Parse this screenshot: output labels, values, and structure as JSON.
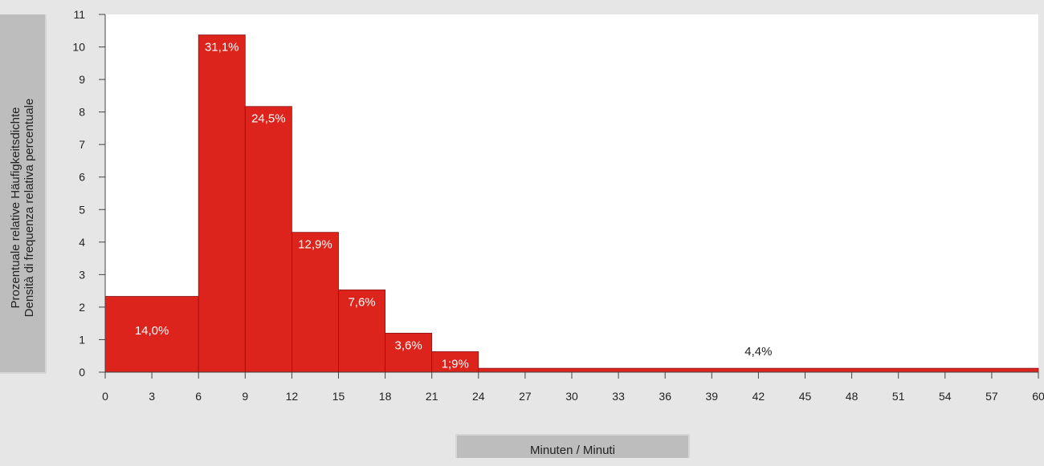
{
  "chart_data": {
    "type": "histogram",
    "ylabel_lines": [
      "Prozentuale relative Häufigkeitsdichte",
      "Densità di frequenza relativa percentuale"
    ],
    "xlabel": "Minuten / Minuti",
    "xlim": [
      0,
      60
    ],
    "ylim": [
      0,
      11
    ],
    "x_ticks": [
      0,
      3,
      6,
      9,
      12,
      15,
      18,
      21,
      24,
      27,
      30,
      33,
      36,
      39,
      42,
      45,
      48,
      51,
      54,
      57,
      60
    ],
    "x_tick_labels": [
      "0",
      "3",
      "6",
      "9",
      "12",
      "15",
      "18",
      "21",
      "24",
      "27",
      "30",
      "33",
      "36",
      "39",
      "42",
      "45",
      "48",
      "51",
      "54",
      "57",
      "60"
    ],
    "y_ticks": [
      0,
      1,
      2,
      3,
      4,
      5,
      6,
      7,
      8,
      9,
      10,
      11
    ],
    "bins": [
      {
        "start": 0,
        "end": 6,
        "density": 2.33,
        "label": "14,0%"
      },
      {
        "start": 6,
        "end": 9,
        "density": 10.37,
        "label": "31,1%"
      },
      {
        "start": 9,
        "end": 12,
        "density": 8.17,
        "label": "24,5%"
      },
      {
        "start": 12,
        "end": 15,
        "density": 4.3,
        "label": "12,9%"
      },
      {
        "start": 15,
        "end": 18,
        "density": 2.53,
        "label": "7,6%"
      },
      {
        "start": 18,
        "end": 21,
        "density": 1.2,
        "label": "3,6%"
      },
      {
        "start": 21,
        "end": 24,
        "density": 0.63,
        "label": "1;9%"
      },
      {
        "start": 24,
        "end": 60,
        "density": 0.12,
        "label": "4,4%"
      }
    ],
    "bar_color": "#dc241c",
    "plot_background": "#ffffff",
    "grid": false
  }
}
